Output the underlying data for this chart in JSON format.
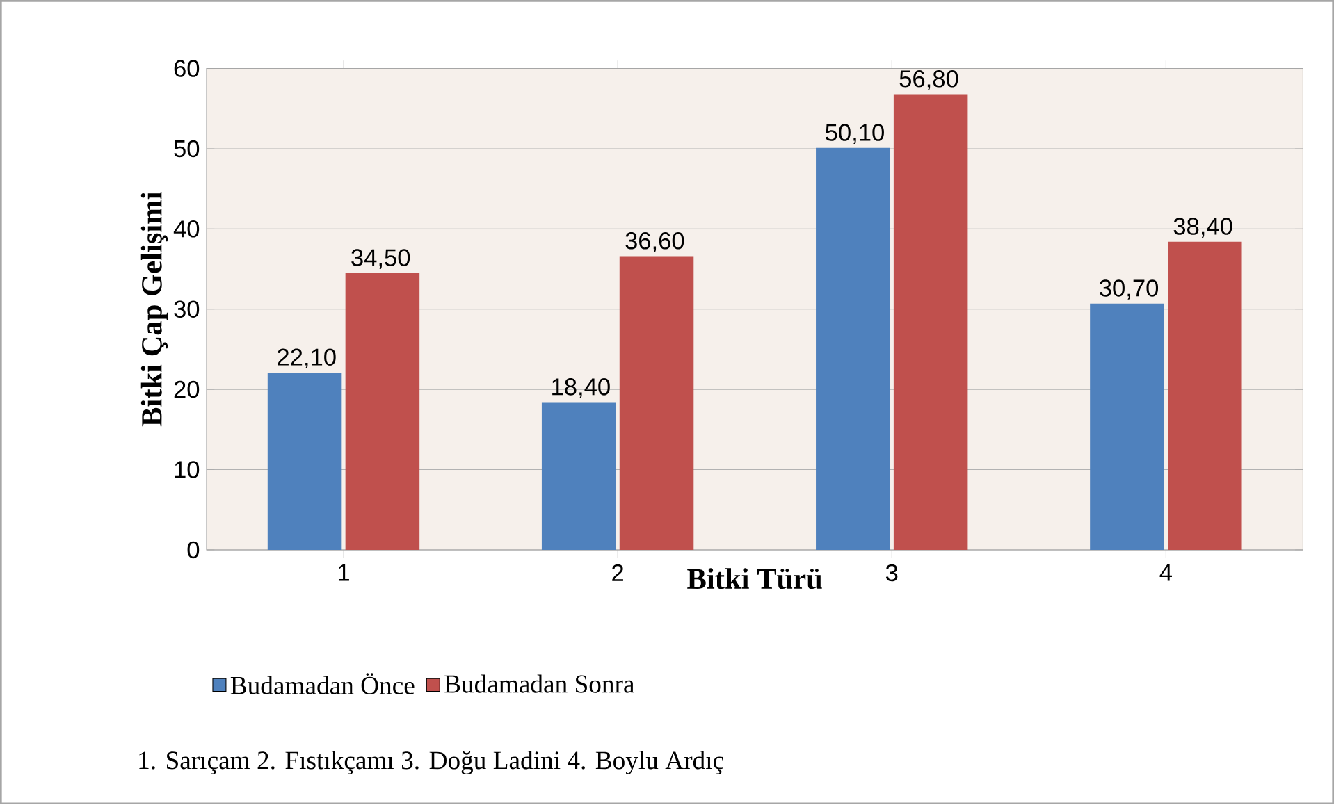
{
  "chart_data": {
    "type": "bar",
    "xlabel": "Bitki Türü",
    "ylabel": "Bitki Çap Gelişimi",
    "categories": [
      "1",
      "2",
      "3",
      "4"
    ],
    "series": [
      {
        "name": "Budamadan Önce",
        "color": "#4f81bd",
        "values": [
          22.1,
          18.4,
          50.1,
          30.7
        ],
        "value_labels": [
          "22,10",
          "18,40",
          "50,10",
          "30,70"
        ]
      },
      {
        "name": "Budamadan Sonra",
        "color": "#c0504d",
        "values": [
          34.5,
          36.6,
          56.8,
          38.4
        ],
        "value_labels": [
          "34,50",
          "36,60",
          "56,80",
          "38,40"
        ]
      }
    ],
    "ylim": [
      0,
      60
    ],
    "yticks": [
      0,
      10,
      20,
      30,
      40,
      50,
      60
    ],
    "grid": "y",
    "legend": "bottom",
    "annotations": [
      "1. Sarıçam  2. Fıstıkçamı  3. Doğu Ladini  4. Boylu Ardıç"
    ]
  }
}
